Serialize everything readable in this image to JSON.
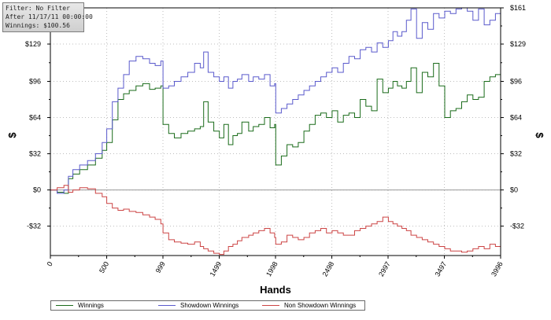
{
  "info_box": {
    "filter": "Filter: No Filter",
    "after": "After 11/17/11 00:00:00",
    "winnings": "Winnings: $100.56"
  },
  "chart_data": {
    "type": "line",
    "title": "",
    "xlabel": "Hands",
    "ylabel_left": "$",
    "ylabel_right": "$",
    "xlim": [
      0,
      3996
    ],
    "ylim": [
      -58,
      161
    ],
    "x_ticks": [
      0,
      500,
      999,
      1499,
      1998,
      2498,
      2997,
      3497,
      3996
    ],
    "y_ticks": [
      -32,
      0,
      32,
      64,
      96,
      129,
      161
    ],
    "y_tick_labels": [
      "-$32",
      "$0",
      "$32",
      "$64",
      "$96",
      "$129",
      "$161"
    ],
    "grid": true,
    "legend_placement": "bottom",
    "colors": {
      "Winnings": "#1a6b1a",
      "Showdown Winnings": "#5a5acc",
      "Non Showdown Winnings": "#cc4444"
    },
    "series": [
      {
        "name": "Winnings",
        "x": [
          0,
          60,
          120,
          160,
          200,
          260,
          330,
          400,
          460,
          500,
          550,
          600,
          650,
          700,
          760,
          820,
          880,
          930,
          980,
          1000,
          1050,
          1100,
          1160,
          1220,
          1280,
          1330,
          1360,
          1400,
          1450,
          1500,
          1540,
          1580,
          1620,
          1660,
          1700,
          1760,
          1800,
          1850,
          1900,
          1950,
          1990,
          2000,
          2050,
          2100,
          2150,
          2200,
          2250,
          2300,
          2350,
          2400,
          2450,
          2500,
          2550,
          2600,
          2650,
          2700,
          2750,
          2800,
          2850,
          2900,
          2950,
          3000,
          3040,
          3080,
          3120,
          3160,
          3200,
          3250,
          3300,
          3350,
          3400,
          3450,
          3500,
          3550,
          3600,
          3650,
          3700,
          3750,
          3800,
          3850,
          3900,
          3950,
          3996
        ],
        "y": [
          0,
          -2,
          -3,
          10,
          14,
          18,
          22,
          28,
          35,
          42,
          62,
          80,
          85,
          88,
          92,
          94,
          89,
          90,
          92,
          58,
          50,
          46,
          50,
          52,
          54,
          56,
          78,
          60,
          52,
          46,
          58,
          40,
          48,
          50,
          60,
          52,
          56,
          58,
          64,
          55,
          58,
          22,
          30,
          40,
          38,
          42,
          52,
          58,
          66,
          68,
          64,
          70,
          60,
          66,
          68,
          64,
          80,
          74,
          70,
          98,
          86,
          90,
          96,
          92,
          90,
          96,
          108,
          86,
          104,
          100,
          112,
          92,
          64,
          70,
          72,
          78,
          84,
          80,
          82,
          96,
          100,
          102,
          100
        ],
        "final_value": 100.56
      },
      {
        "name": "Showdown Winnings",
        "x": [
          0,
          60,
          120,
          160,
          200,
          260,
          330,
          400,
          460,
          500,
          550,
          600,
          650,
          700,
          760,
          820,
          880,
          930,
          980,
          1000,
          1050,
          1100,
          1160,
          1220,
          1280,
          1330,
          1360,
          1400,
          1450,
          1500,
          1540,
          1580,
          1620,
          1660,
          1700,
          1760,
          1800,
          1850,
          1900,
          1950,
          1990,
          2000,
          2050,
          2100,
          2150,
          2200,
          2250,
          2300,
          2350,
          2400,
          2450,
          2500,
          2550,
          2600,
          2650,
          2700,
          2750,
          2800,
          2850,
          2900,
          2950,
          3000,
          3040,
          3080,
          3120,
          3160,
          3200,
          3250,
          3300,
          3350,
          3400,
          3450,
          3500,
          3550,
          3600,
          3650,
          3700,
          3750,
          3800,
          3850,
          3900,
          3950,
          3996
        ],
        "y": [
          0,
          -3,
          0,
          12,
          18,
          22,
          26,
          32,
          42,
          54,
          78,
          90,
          102,
          114,
          118,
          116,
          112,
          110,
          114,
          90,
          92,
          96,
          100,
          104,
          112,
          108,
          122,
          104,
          100,
          96,
          100,
          90,
          96,
          98,
          102,
          96,
          100,
          98,
          102,
          92,
          94,
          68,
          72,
          76,
          80,
          84,
          88,
          92,
          96,
          100,
          104,
          108,
          104,
          112,
          118,
          116,
          124,
          126,
          122,
          130,
          126,
          132,
          140,
          136,
          140,
          150,
          160,
          134,
          148,
          142,
          156,
          152,
          158,
          156,
          160,
          161,
          158,
          150,
          160,
          146,
          150,
          156,
          160
        ]
      },
      {
        "name": "Non Showdown Winnings",
        "x": [
          0,
          60,
          120,
          160,
          200,
          260,
          330,
          400,
          460,
          500,
          550,
          600,
          650,
          700,
          760,
          820,
          880,
          930,
          980,
          1000,
          1050,
          1100,
          1160,
          1220,
          1280,
          1330,
          1360,
          1400,
          1450,
          1500,
          1540,
          1580,
          1620,
          1660,
          1700,
          1760,
          1800,
          1850,
          1900,
          1950,
          1990,
          2000,
          2050,
          2100,
          2150,
          2200,
          2250,
          2300,
          2350,
          2400,
          2450,
          2500,
          2550,
          2600,
          2650,
          2700,
          2750,
          2800,
          2850,
          2900,
          2950,
          3000,
          3040,
          3080,
          3120,
          3160,
          3200,
          3250,
          3300,
          3350,
          3400,
          3450,
          3500,
          3550,
          3600,
          3650,
          3700,
          3750,
          3800,
          3850,
          3900,
          3950,
          3996
        ],
        "y": [
          0,
          2,
          4,
          -2,
          0,
          2,
          1,
          -3,
          -6,
          -12,
          -16,
          -18,
          -17,
          -19,
          -20,
          -22,
          -24,
          -26,
          -30,
          -38,
          -44,
          -46,
          -47,
          -48,
          -46,
          -50,
          -52,
          -54,
          -56,
          -57,
          -54,
          -50,
          -48,
          -45,
          -42,
          -40,
          -38,
          -36,
          -34,
          -38,
          -42,
          -48,
          -46,
          -40,
          -42,
          -44,
          -42,
          -38,
          -36,
          -34,
          -38,
          -36,
          -38,
          -40,
          -40,
          -36,
          -34,
          -32,
          -30,
          -28,
          -24,
          -28,
          -30,
          -32,
          -34,
          -36,
          -40,
          -42,
          -44,
          -46,
          -48,
          -50,
          -52,
          -54,
          -54,
          -55,
          -54,
          -52,
          -50,
          -52,
          -48,
          -50,
          -52
        ]
      }
    ]
  }
}
